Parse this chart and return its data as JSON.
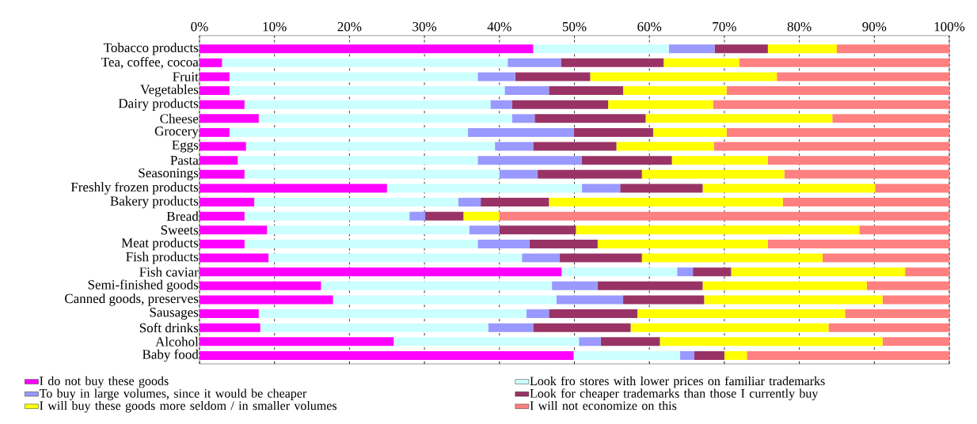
{
  "chart_data": {
    "type": "bar",
    "orientation": "horizontal",
    "stacked": true,
    "grid": "x",
    "legend": "bottom",
    "categories": [
      "Tobacco products",
      "Tea, coffee, cocoa",
      "Fruit",
      "Vegetables",
      "Dairy products",
      "Cheese",
      "Grocery",
      "Eggs",
      "Pasta",
      "Seasonings",
      "Freshly frozen products",
      "Bakery products",
      "Bread",
      "Sweets",
      "Meat products",
      "Fish products",
      "Fish caviar",
      "Semi-finished goods",
      "Canned goods, preserves",
      "Sausages",
      "Soft drinks",
      "Alcohol",
      "Baby food"
    ],
    "xlim": [
      0,
      100
    ],
    "xticks": [
      {
        "value": 0,
        "label": "0%"
      },
      {
        "value": 10,
        "label": "10%"
      },
      {
        "value": 20,
        "label": "20%"
      },
      {
        "value": 30,
        "label": "30%"
      },
      {
        "value": 40,
        "label": "40%"
      },
      {
        "value": 50,
        "label": "50%"
      },
      {
        "value": 60,
        "label": "60%"
      },
      {
        "value": 70,
        "label": "70%"
      },
      {
        "value": 80,
        "label": "80%"
      },
      {
        "value": 90,
        "label": "90%"
      },
      {
        "value": 100,
        "label": "100%"
      }
    ],
    "series": [
      {
        "name": "I do not buy these goods",
        "color": "#ff00ff",
        "values": [
          44.5,
          3.0,
          4.0,
          4.0,
          6.0,
          7.9,
          4.0,
          6.2,
          5.1,
          6.0,
          25.0,
          7.3,
          6.0,
          9.0,
          6.0,
          9.2,
          48.3,
          16.2,
          17.8,
          7.9,
          8.1,
          25.9,
          49.9
        ]
      },
      {
        "name": "Look fro stores with lower prices on familiar trademarks",
        "color": "#ccffff",
        "values": [
          18.1,
          38.1,
          33.1,
          36.7,
          32.8,
          33.8,
          31.8,
          33.2,
          32.0,
          34.0,
          26.0,
          27.2,
          22.0,
          27.0,
          31.1,
          33.8,
          15.4,
          30.8,
          29.8,
          35.7,
          30.4,
          24.7,
          14.2
        ]
      },
      {
        "name": "To buy in large volumes, since it would be cheaper",
        "color": "#9999ff",
        "values": [
          6.1,
          7.1,
          5.0,
          5.9,
          2.9,
          3.0,
          14.1,
          5.1,
          13.9,
          5.1,
          5.1,
          3.0,
          2.1,
          4.0,
          6.9,
          5.0,
          2.1,
          6.1,
          8.9,
          3.0,
          6.0,
          2.9,
          1.9
        ]
      },
      {
        "name": "Look for cheaper trademarks than those I currently buy",
        "color": "#993366",
        "values": [
          7.1,
          13.7,
          10.0,
          9.9,
          12.8,
          14.8,
          10.6,
          11.1,
          12.0,
          13.9,
          11.0,
          9.1,
          5.1,
          10.2,
          9.1,
          11.0,
          5.1,
          14.0,
          10.8,
          11.8,
          13.0,
          7.9,
          4.0
        ]
      },
      {
        "name": "I will buy these goods more seldom / in smaller volumes",
        "color": "#ffff00",
        "values": [
          9.2,
          10.1,
          24.9,
          13.8,
          14.0,
          24.9,
          9.8,
          13.0,
          12.8,
          19.0,
          23.0,
          31.2,
          4.8,
          37.8,
          22.7,
          24.1,
          23.2,
          21.9,
          23.8,
          27.7,
          26.4,
          29.7,
          3.0
        ]
      },
      {
        "name": "I will not economize on this",
        "color": "#ff8080",
        "values": [
          15.0,
          28.0,
          23.0,
          29.7,
          31.5,
          15.6,
          29.7,
          31.4,
          24.2,
          22.0,
          9.9,
          22.2,
          60.0,
          12.0,
          24.2,
          16.9,
          5.9,
          11.0,
          8.9,
          13.9,
          16.1,
          8.9,
          27.0
        ]
      }
    ]
  }
}
